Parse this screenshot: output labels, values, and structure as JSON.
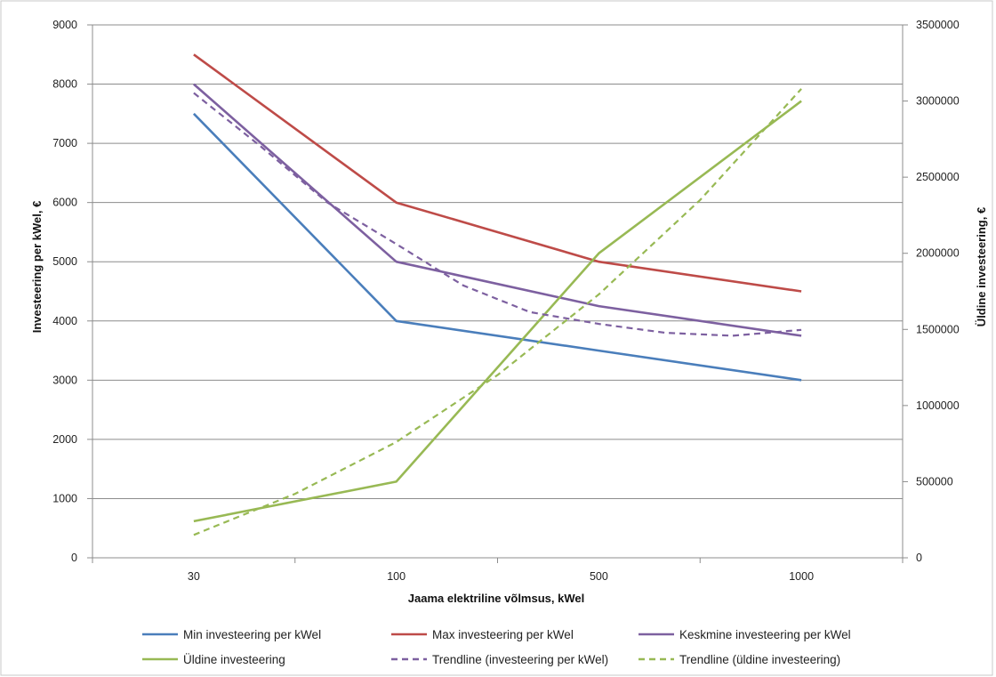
{
  "chart_data": {
    "type": "line",
    "categories": [
      "30",
      "100",
      "500",
      "1000"
    ],
    "xlabel": "Jaama elektriline võlmsus, kWel",
    "ylabel": "Investeering per kWel, €",
    "y2label": "Üldine investeering, €",
    "ylim": [
      0,
      9000
    ],
    "yticks": [
      0,
      1000,
      2000,
      3000,
      4000,
      5000,
      6000,
      7000,
      8000,
      9000
    ],
    "y2lim": [
      0,
      3500000
    ],
    "y2ticks": [
      0,
      500000,
      1000000,
      1500000,
      2000000,
      2500000,
      3000000,
      3500000
    ],
    "grid": true,
    "legend_position": "bottom",
    "series": [
      {
        "name": "Min investeering per kWel",
        "axis": "left",
        "values": [
          7500,
          4000,
          3500,
          3000
        ],
        "color": "#4a7ebb",
        "style": "solid"
      },
      {
        "name": "Max investeering per kWel",
        "axis": "left",
        "values": [
          8500,
          6000,
          5000,
          4500
        ],
        "color": "#be4b48",
        "style": "solid"
      },
      {
        "name": "Keskmine investeering per kWel",
        "axis": "left",
        "values": [
          8000,
          5000,
          4250,
          3750
        ],
        "color": "#7d60a0",
        "style": "solid"
      },
      {
        "name": "Üldine investeering",
        "axis": "right",
        "values": [
          240000,
          500000,
          2000000,
          3000000
        ],
        "color": "#98b954",
        "style": "solid"
      },
      {
        "name": "Trendline (investeering per kWel)",
        "axis": "left",
        "x": [
          0,
          0.33,
          0.66,
          1,
          1.33,
          1.66,
          2,
          2.33,
          2.66,
          3
        ],
        "values": [
          7850,
          6950,
          6000,
          5300,
          4600,
          4150,
          3950,
          3800,
          3750,
          3850
        ],
        "color": "#7d60a0",
        "style": "dashed"
      },
      {
        "name": "Trendline (üldine investeering)",
        "axis": "right",
        "x": [
          0,
          0.5,
          1,
          1.5,
          2,
          2.5,
          3
        ],
        "values": [
          150000,
          420000,
          760000,
          1200000,
          1730000,
          2350000,
          3080000
        ],
        "color": "#98b954",
        "style": "dashed"
      }
    ]
  }
}
